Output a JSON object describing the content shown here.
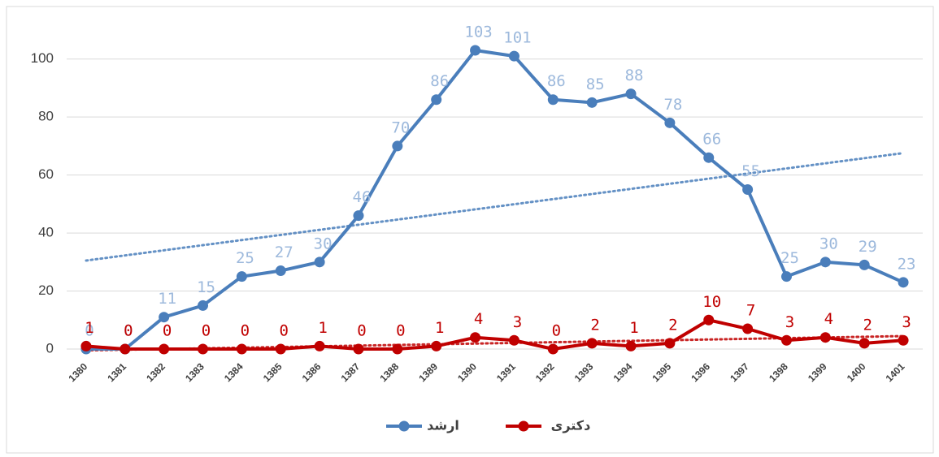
{
  "chart_data": {
    "type": "line",
    "categories": [
      1380,
      1381,
      1382,
      1383,
      1384,
      1385,
      1386,
      1387,
      1388,
      1389,
      1390,
      1391,
      1392,
      1393,
      1394,
      1395,
      1396,
      1397,
      1398,
      1399,
      1400,
      1401
    ],
    "series": [
      {
        "name": "ارشد",
        "color": "#4a7ebb",
        "label_color": "#9db9dc",
        "values": [
          0,
          0,
          11,
          15,
          25,
          27,
          30,
          46,
          70,
          86,
          103,
          101,
          86,
          85,
          88,
          78,
          66,
          55,
          25,
          30,
          29,
          23
        ]
      },
      {
        "name": "دکتری",
        "color": "#c00000",
        "label_color": "#c00000",
        "values": [
          1,
          0,
          0,
          0,
          0,
          0,
          1,
          0,
          0,
          1,
          4,
          3,
          0,
          2,
          1,
          2,
          10,
          7,
          3,
          4,
          2,
          3
        ]
      }
    ],
    "ylim": [
      0,
      110
    ],
    "yticks": [
      0,
      20,
      40,
      60,
      80,
      100
    ],
    "grid": true,
    "trendline": true,
    "legend": "bottom"
  }
}
